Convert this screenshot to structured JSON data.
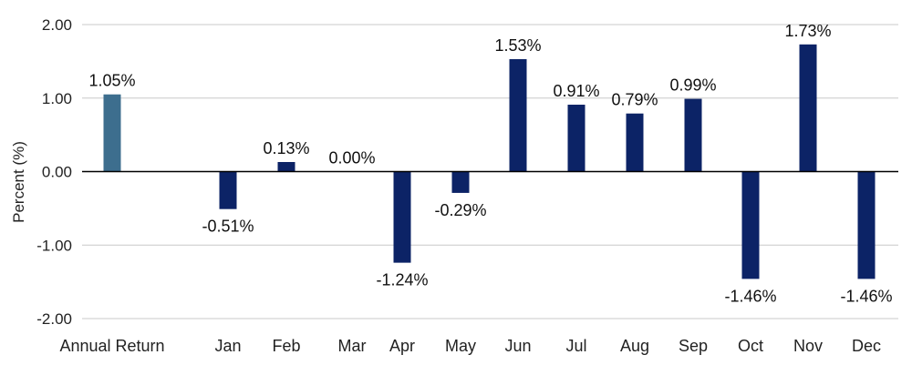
{
  "chart_data": {
    "type": "bar",
    "title": "",
    "xlabel": "",
    "ylabel": "Percent (%)",
    "ylim": [
      -2,
      2
    ],
    "yticks": [
      2,
      1,
      0,
      -1,
      -2
    ],
    "ytick_labels": [
      "2.00",
      "1.00",
      "0.00",
      "-1.00",
      "-2.00"
    ],
    "grid": true,
    "categories": [
      "Annual Return",
      "Jan",
      "Feb",
      "Mar",
      "Apr",
      "May",
      "Jun",
      "Jul",
      "Aug",
      "Sep",
      "Oct",
      "Nov",
      "Dec"
    ],
    "values": [
      1.05,
      -0.51,
      0.13,
      0.0,
      -1.24,
      -0.29,
      1.53,
      0.91,
      0.79,
      0.99,
      -1.46,
      1.73,
      -1.46
    ],
    "data_labels": [
      "1.05%",
      "-0.51%",
      "0.13%",
      "0.00%",
      "-1.24%",
      "-0.29%",
      "1.53%",
      "0.91%",
      "0.79%",
      "0.99%",
      "-1.46%",
      "1.73%",
      "-1.46%"
    ],
    "colors": {
      "annual": "#3d6e8e",
      "monthly": "#0c2366"
    }
  }
}
